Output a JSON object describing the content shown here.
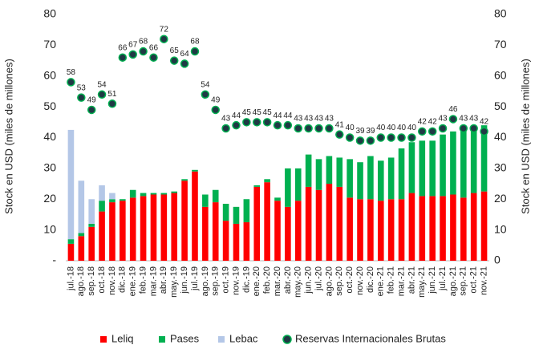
{
  "chart_data": {
    "type": "bar",
    "stacked": true,
    "categories": [
      "jul.-18",
      "ago.-18",
      "sep.-18",
      "oct.-18",
      "nov.-18",
      "dic.-18",
      "ene.-19",
      "feb.-19",
      "mar.-19",
      "abr.-19",
      "may.-19",
      "jun.-19",
      "jul.-19",
      "ago.-19",
      "sep.-19",
      "oct.-19",
      "nov.-19",
      "dic.-19",
      "ene.-20",
      "feb.-20",
      "mar.-20",
      "abr.-20",
      "may.-20",
      "jun.-20",
      "jul.-20",
      "ago.-20",
      "sep.-20",
      "oct.-20",
      "nov.-20",
      "dic.-20",
      "ene.-21",
      "feb.-21",
      "mar.-21",
      "abr.-21",
      "may.-21",
      "jun.-21",
      "jul.-21",
      "ago.-21",
      "sep.-21",
      "oct.-21",
      "nov.-21"
    ],
    "series": [
      {
        "name": "Leliq",
        "type": "bar",
        "color": "#ff0000",
        "values": [
          5.5,
          8,
          11,
          16,
          19,
          19.5,
          20.5,
          21,
          21.5,
          21.5,
          22,
          26,
          29,
          17.5,
          19,
          13,
          12,
          12.5,
          24,
          25.5,
          19.5,
          17.5,
          19.5,
          24,
          23,
          25,
          24,
          20.5,
          20,
          20,
          19.5,
          20,
          20,
          22,
          21,
          21,
          21,
          21.5,
          20.5,
          22,
          22.5
        ]
      },
      {
        "name": "Pases",
        "type": "bar",
        "color": "#00b050",
        "values": [
          1.5,
          1,
          1,
          3.5,
          1,
          0.5,
          2.5,
          1,
          0.5,
          0.5,
          0.5,
          0.5,
          0.5,
          4,
          4,
          5.5,
          5.5,
          7.5,
          0.5,
          1,
          1,
          12.5,
          10.5,
          10.5,
          10,
          9,
          9.5,
          12.5,
          12,
          14,
          13,
          13.5,
          16.5,
          16.5,
          18,
          18,
          20,
          20.5,
          22,
          21.5,
          21.5
        ]
      },
      {
        "name": "Lebac",
        "type": "bar",
        "color": "#b4c7e7",
        "values": [
          35.5,
          17,
          8,
          5,
          2,
          0,
          0,
          0,
          0,
          0,
          0,
          0,
          0,
          0,
          0,
          0,
          0,
          0,
          0,
          0,
          0,
          0,
          0,
          0,
          0,
          0,
          0,
          0,
          0,
          0,
          0,
          0,
          0,
          0,
          0,
          0,
          0,
          0,
          0,
          0,
          0
        ]
      },
      {
        "name": "Reservas Internacionales Brutas",
        "type": "scatter",
        "axis": "y2",
        "color": "#1f3a44",
        "edge": "#00b050",
        "values": [
          58,
          53,
          49,
          54,
          51,
          66,
          67,
          68,
          66,
          72,
          65,
          64,
          68,
          54,
          49,
          43,
          44,
          45,
          45,
          45,
          44,
          44,
          43,
          43,
          43,
          43,
          41,
          40,
          39,
          39,
          40,
          40,
          40,
          40,
          42,
          42,
          43,
          46,
          43,
          43,
          42
        ]
      }
    ],
    "ylim": [
      0,
      80
    ],
    "yticks": [
      {
        "value": 0,
        "label": "-"
      },
      10,
      20,
      30,
      40,
      50,
      60,
      70,
      80
    ],
    "y2lim": [
      0,
      80
    ],
    "y2ticks": [
      0,
      10,
      20,
      30,
      40,
      50,
      60,
      70,
      80
    ],
    "ylabel": "Stock en USD (miles de millones)",
    "y2label": "Stock en USD (miles de millones)",
    "legend": "bottom"
  }
}
